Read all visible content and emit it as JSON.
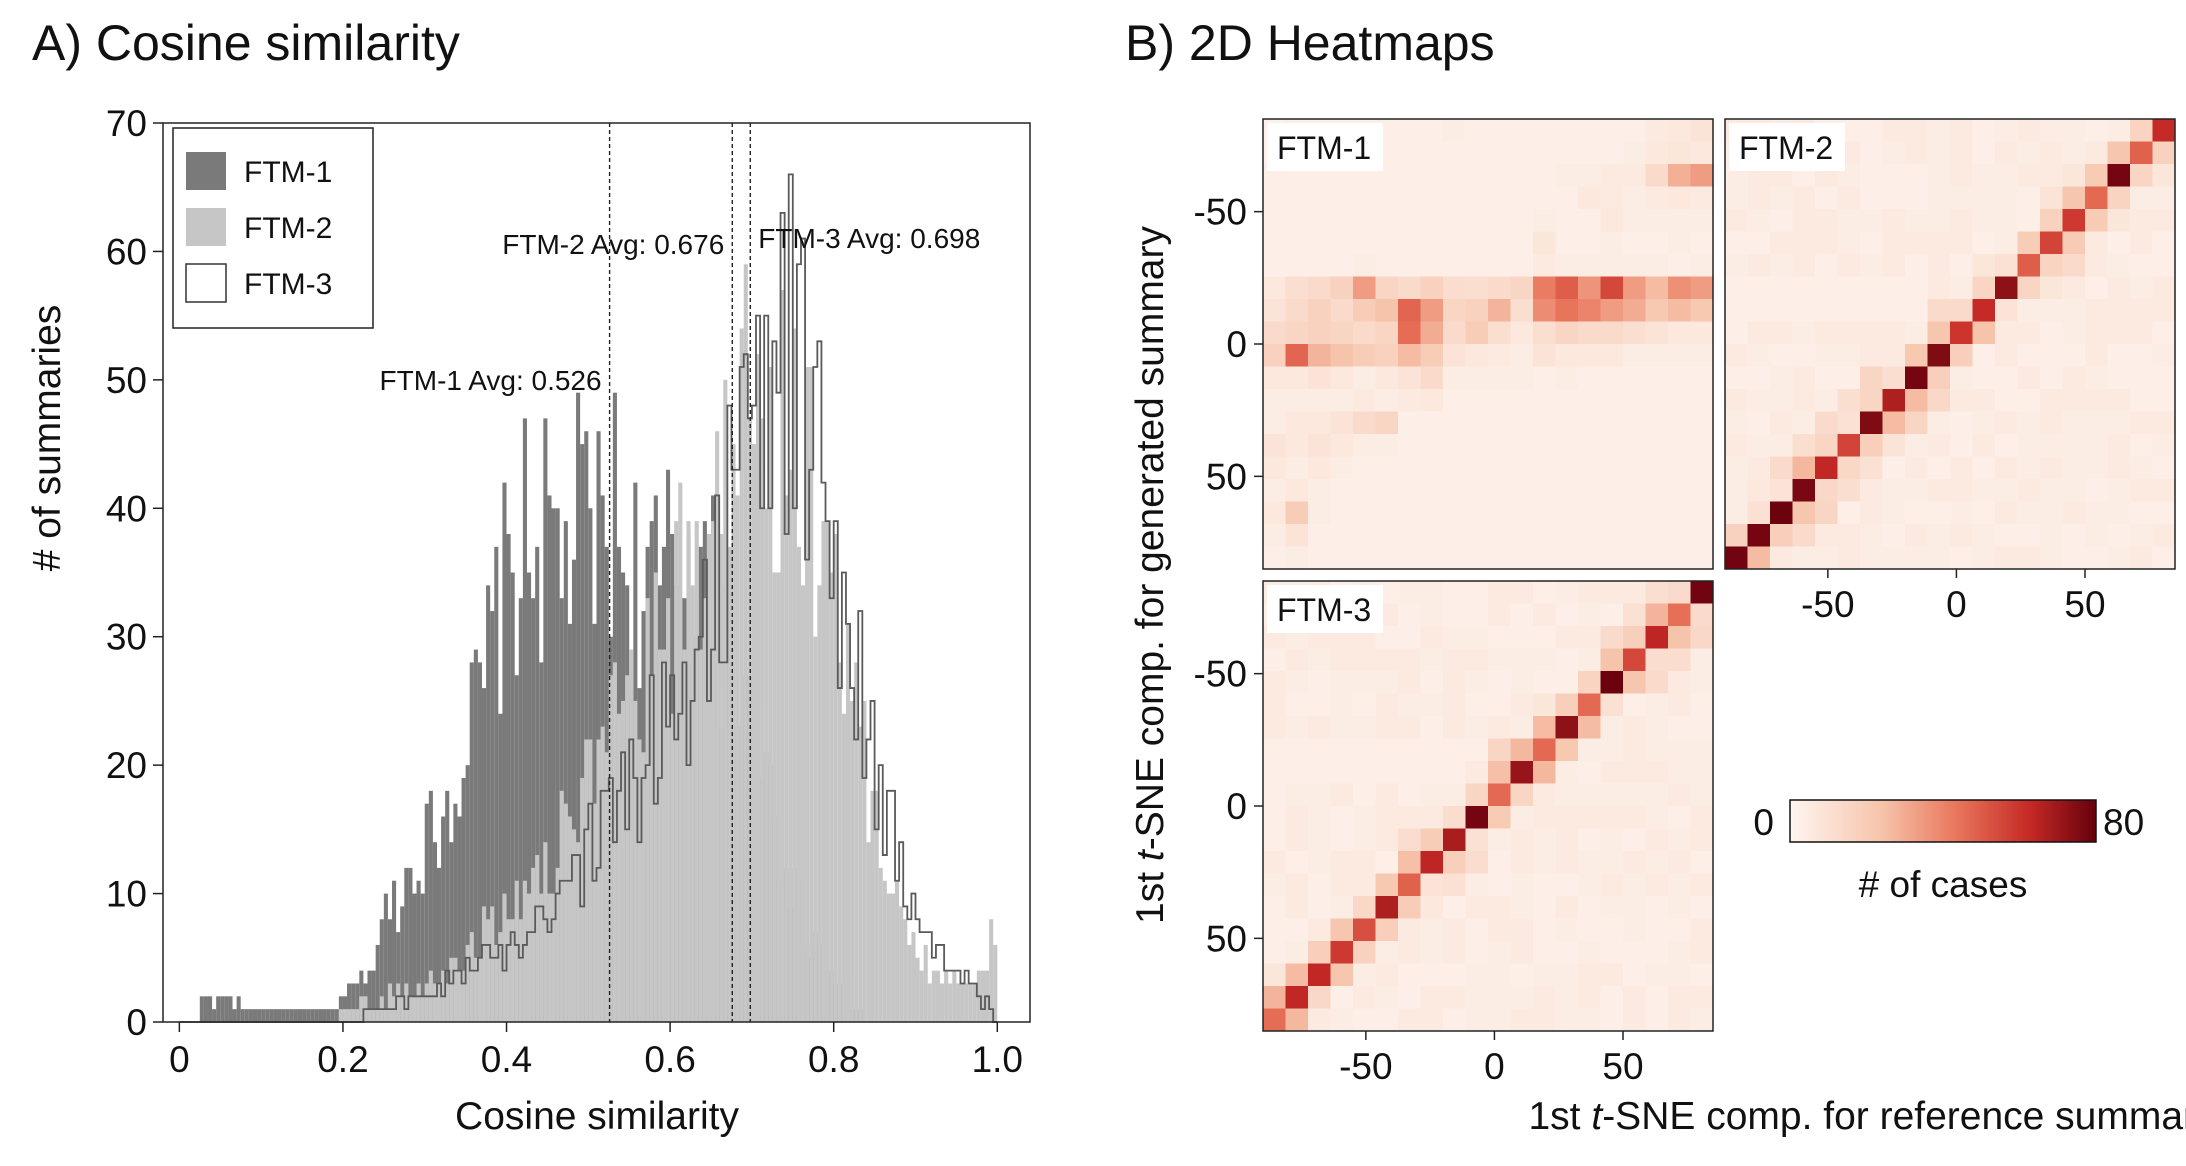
{
  "panel_a": {
    "title": "A) Cosine similarity",
    "xlabel": "Cosine similarity",
    "ylabel": "# of summaries",
    "legend": [
      "FTM-1",
      "FTM-2",
      "FTM-3"
    ],
    "avg_labels": [
      "FTM-1 Avg: 0.526",
      "FTM-2 Avg: 0.676",
      "FTM-3 Avg: 0.698"
    ]
  },
  "panel_b": {
    "title": "B) 2D Heatmaps",
    "xlabel_pre": "1st ",
    "xlabel_italic": "t",
    "xlabel_post": "-SNE comp. for reference summary",
    "ylabel_pre": "1st ",
    "ylabel_italic": "t",
    "ylabel_post": "-SNE comp. for generated summary",
    "panel_labels": [
      "FTM-1",
      "FTM-2",
      "FTM-3"
    ],
    "colorbar": {
      "label": "# of cases",
      "min_label": "0",
      "max_label": "80"
    }
  },
  "chart_data": [
    {
      "type": "histogram",
      "title": "A) Cosine similarity",
      "xlabel": "Cosine similarity",
      "ylabel": "# of summaries",
      "xlim": [
        -0.02,
        1.04
      ],
      "ylim": [
        0,
        70
      ],
      "xticks": [
        0,
        0.2,
        0.4,
        0.6,
        0.8,
        1.0
      ],
      "xtick_labels": [
        "0",
        "0.2",
        "0.4",
        "0.6",
        "0.8",
        "1.0"
      ],
      "yticks": [
        0,
        10,
        20,
        30,
        40,
        50,
        60,
        70
      ],
      "ytick_labels": [
        "0",
        "10",
        "20",
        "30",
        "40",
        "50",
        "60",
        "70"
      ],
      "bins": {
        "start": 0.0,
        "end": 1.0,
        "count": 200
      },
      "legend_position": "top-left",
      "colors": {
        "FTM-1": "#7a7a7a",
        "FTM-2": "#c6c6c6",
        "FTM-3": "#5a5a5a"
      },
      "series": [
        {
          "name": "FTM-1",
          "style": "filled",
          "peaks": [
            {
              "x": 0.03,
              "y": 2
            },
            {
              "x": 0.09,
              "y": 1
            },
            {
              "x": 0.1,
              "y": 1
            },
            {
              "x": 0.15,
              "y": 1
            },
            {
              "x": 0.18,
              "y": 1
            },
            {
              "x": 0.2,
              "y": 2
            },
            {
              "x": 0.22,
              "y": 3
            },
            {
              "x": 0.24,
              "y": 5
            },
            {
              "x": 0.25,
              "y": 8
            },
            {
              "x": 0.27,
              "y": 10
            },
            {
              "x": 0.29,
              "y": 13
            },
            {
              "x": 0.31,
              "y": 15
            },
            {
              "x": 0.33,
              "y": 18
            },
            {
              "x": 0.35,
              "y": 22
            },
            {
              "x": 0.37,
              "y": 25
            },
            {
              "x": 0.39,
              "y": 32
            },
            {
              "x": 0.41,
              "y": 35
            },
            {
              "x": 0.43,
              "y": 38
            },
            {
              "x": 0.45,
              "y": 37
            },
            {
              "x": 0.47,
              "y": 36
            },
            {
              "x": 0.49,
              "y": 39
            },
            {
              "x": 0.51,
              "y": 37
            },
            {
              "x": 0.53,
              "y": 40
            },
            {
              "x": 0.55,
              "y": 35
            },
            {
              "x": 0.57,
              "y": 34
            },
            {
              "x": 0.59,
              "y": 33
            },
            {
              "x": 0.61,
              "y": 37
            },
            {
              "x": 0.63,
              "y": 38
            },
            {
              "x": 0.65,
              "y": 33
            },
            {
              "x": 0.67,
              "y": 29
            },
            {
              "x": 0.69,
              "y": 24
            },
            {
              "x": 0.71,
              "y": 19
            },
            {
              "x": 0.73,
              "y": 16
            },
            {
              "x": 0.75,
              "y": 11
            },
            {
              "x": 0.77,
              "y": 7
            },
            {
              "x": 0.79,
              "y": 5
            },
            {
              "x": 0.81,
              "y": 3
            },
            {
              "x": 0.83,
              "y": 1
            },
            {
              "x": 0.84,
              "y": 0
            }
          ]
        },
        {
          "name": "FTM-2",
          "style": "filled",
          "peaks": [
            {
              "x": 0.19,
              "y": 0
            },
            {
              "x": 0.2,
              "y": 1
            },
            {
              "x": 0.25,
              "y": 2
            },
            {
              "x": 0.3,
              "y": 3
            },
            {
              "x": 0.35,
              "y": 5
            },
            {
              "x": 0.4,
              "y": 9
            },
            {
              "x": 0.45,
              "y": 13
            },
            {
              "x": 0.5,
              "y": 18
            },
            {
              "x": 0.55,
              "y": 24
            },
            {
              "x": 0.6,
              "y": 30
            },
            {
              "x": 0.63,
              "y": 36
            },
            {
              "x": 0.66,
              "y": 42
            },
            {
              "x": 0.68,
              "y": 48
            },
            {
              "x": 0.7,
              "y": 49
            },
            {
              "x": 0.72,
              "y": 49
            },
            {
              "x": 0.74,
              "y": 47
            },
            {
              "x": 0.76,
              "y": 44
            },
            {
              "x": 0.78,
              "y": 40
            },
            {
              "x": 0.8,
              "y": 35
            },
            {
              "x": 0.82,
              "y": 27
            },
            {
              "x": 0.84,
              "y": 20
            },
            {
              "x": 0.86,
              "y": 14
            },
            {
              "x": 0.88,
              "y": 9
            },
            {
              "x": 0.9,
              "y": 6
            },
            {
              "x": 0.92,
              "y": 4
            },
            {
              "x": 0.95,
              "y": 3
            },
            {
              "x": 0.97,
              "y": 2
            },
            {
              "x": 1.0,
              "y": 8
            }
          ]
        },
        {
          "name": "FTM-3",
          "style": "step-outline",
          "peaks": [
            {
              "x": 0.2,
              "y": 0
            },
            {
              "x": 0.25,
              "y": 1
            },
            {
              "x": 0.3,
              "y": 2
            },
            {
              "x": 0.35,
              "y": 4
            },
            {
              "x": 0.4,
              "y": 6
            },
            {
              "x": 0.45,
              "y": 9
            },
            {
              "x": 0.5,
              "y": 13
            },
            {
              "x": 0.55,
              "y": 18
            },
            {
              "x": 0.6,
              "y": 24
            },
            {
              "x": 0.63,
              "y": 28
            },
            {
              "x": 0.66,
              "y": 35
            },
            {
              "x": 0.68,
              "y": 40
            },
            {
              "x": 0.7,
              "y": 45
            },
            {
              "x": 0.72,
              "y": 49
            },
            {
              "x": 0.74,
              "y": 52
            },
            {
              "x": 0.76,
              "y": 50
            },
            {
              "x": 0.78,
              "y": 44
            },
            {
              "x": 0.8,
              "y": 37
            },
            {
              "x": 0.82,
              "y": 31
            },
            {
              "x": 0.84,
              "y": 24
            },
            {
              "x": 0.86,
              "y": 18
            },
            {
              "x": 0.88,
              "y": 12
            },
            {
              "x": 0.9,
              "y": 8
            },
            {
              "x": 0.93,
              "y": 5
            },
            {
              "x": 0.96,
              "y": 3
            },
            {
              "x": 0.98,
              "y": 2
            },
            {
              "x": 1.0,
              "y": 0
            }
          ]
        }
      ],
      "avg_lines": [
        {
          "name": "FTM-1",
          "x": 0.526,
          "label": "FTM-1 Avg: 0.526"
        },
        {
          "name": "FTM-2",
          "x": 0.676,
          "label": "FTM-2 Avg: 0.676"
        },
        {
          "name": "FTM-3",
          "x": 0.698,
          "label": "FTM-3 Avg: 0.698"
        }
      ]
    },
    {
      "type": "heatmap",
      "title": "B) 2D Heatmaps",
      "panels": [
        "FTM-1",
        "FTM-2",
        "FTM-3"
      ],
      "grid_size": 20,
      "xlim": [
        -90,
        85
      ],
      "ylim": [
        85,
        -85
      ],
      "xticks": [
        -50,
        0,
        50
      ],
      "yticks": [
        -50,
        0,
        50
      ],
      "color_range": [
        0,
        80
      ],
      "colormap": [
        "#fdf1ea",
        "#f6c4ab",
        "#e8745a",
        "#c62a26",
        "#67000d"
      ],
      "colorbar_label": "# of cases",
      "cells": {
        "FTM-1": [
          [
            0,
            1,
            1,
            1,
            1,
            1,
            1,
            1,
            2,
            1,
            1,
            1,
            1,
            1,
            1,
            1,
            1,
            3,
            4,
            6
          ],
          [
            0,
            1,
            1,
            1,
            1,
            1,
            1,
            1,
            1,
            1,
            1,
            1,
            1,
            1,
            1,
            1,
            2,
            4,
            5,
            4
          ],
          [
            1,
            1,
            1,
            1,
            1,
            1,
            1,
            1,
            1,
            1,
            1,
            1,
            1,
            2,
            2,
            3,
            3,
            10,
            25,
            30
          ],
          [
            1,
            1,
            1,
            1,
            1,
            1,
            1,
            1,
            1,
            1,
            1,
            1,
            1,
            1,
            4,
            3,
            2,
            3,
            4,
            3
          ],
          [
            1,
            1,
            1,
            1,
            1,
            1,
            1,
            1,
            1,
            1,
            1,
            1,
            2,
            1,
            1,
            4,
            2,
            2,
            2,
            2
          ],
          [
            1,
            1,
            1,
            1,
            1,
            1,
            1,
            1,
            1,
            1,
            1,
            1,
            5,
            1,
            1,
            2,
            1,
            1,
            2,
            1
          ],
          [
            1,
            1,
            1,
            1,
            2,
            1,
            1,
            1,
            1,
            1,
            1,
            1,
            3,
            2,
            2,
            2,
            2,
            2,
            1,
            2
          ],
          [
            4,
            8,
            10,
            14,
            30,
            12,
            10,
            14,
            9,
            8,
            10,
            12,
            38,
            46,
            32,
            52,
            30,
            22,
            33,
            30
          ],
          [
            6,
            10,
            14,
            10,
            16,
            20,
            44,
            30,
            12,
            14,
            24,
            8,
            34,
            40,
            36,
            30,
            26,
            18,
            22,
            18
          ],
          [
            10,
            12,
            14,
            12,
            10,
            12,
            42,
            26,
            10,
            16,
            8,
            4,
            8,
            12,
            10,
            10,
            8,
            6,
            4,
            4
          ],
          [
            14,
            44,
            24,
            20,
            16,
            14,
            22,
            16,
            6,
            4,
            3,
            2,
            6,
            4,
            4,
            4,
            2,
            2,
            2,
            2
          ],
          [
            4,
            4,
            6,
            4,
            2,
            4,
            6,
            10,
            2,
            2,
            2,
            2,
            1,
            2,
            1,
            1,
            1,
            1,
            1,
            1
          ],
          [
            2,
            2,
            2,
            2,
            3,
            2,
            3,
            4,
            1,
            1,
            1,
            1,
            1,
            1,
            1,
            1,
            1,
            1,
            1,
            1
          ],
          [
            2,
            4,
            4,
            6,
            10,
            12,
            1,
            1,
            1,
            1,
            1,
            1,
            1,
            1,
            1,
            1,
            1,
            1,
            1,
            1
          ],
          [
            6,
            4,
            6,
            4,
            2,
            2,
            1,
            1,
            1,
            1,
            1,
            1,
            1,
            1,
            1,
            1,
            1,
            1,
            1,
            1
          ],
          [
            4,
            2,
            4,
            2,
            1,
            1,
            1,
            1,
            1,
            1,
            1,
            1,
            1,
            1,
            1,
            1,
            1,
            1,
            1,
            1
          ],
          [
            2,
            4,
            2,
            1,
            1,
            1,
            1,
            1,
            1,
            1,
            1,
            1,
            1,
            1,
            1,
            1,
            1,
            1,
            1,
            1
          ],
          [
            4,
            16,
            2,
            1,
            1,
            1,
            1,
            1,
            1,
            1,
            1,
            1,
            1,
            1,
            1,
            1,
            1,
            1,
            1,
            1
          ],
          [
            2,
            6,
            1,
            1,
            1,
            1,
            1,
            1,
            1,
            1,
            1,
            1,
            1,
            1,
            1,
            1,
            1,
            1,
            1,
            1
          ],
          [
            1,
            2,
            1,
            1,
            1,
            1,
            1,
            1,
            1,
            1,
            1,
            1,
            1,
            1,
            1,
            1,
            1,
            1,
            1,
            1
          ]
        ],
        "FTM-2": "diagonal-pattern",
        "FTM-3": "diagonal-pattern"
      }
    }
  ]
}
